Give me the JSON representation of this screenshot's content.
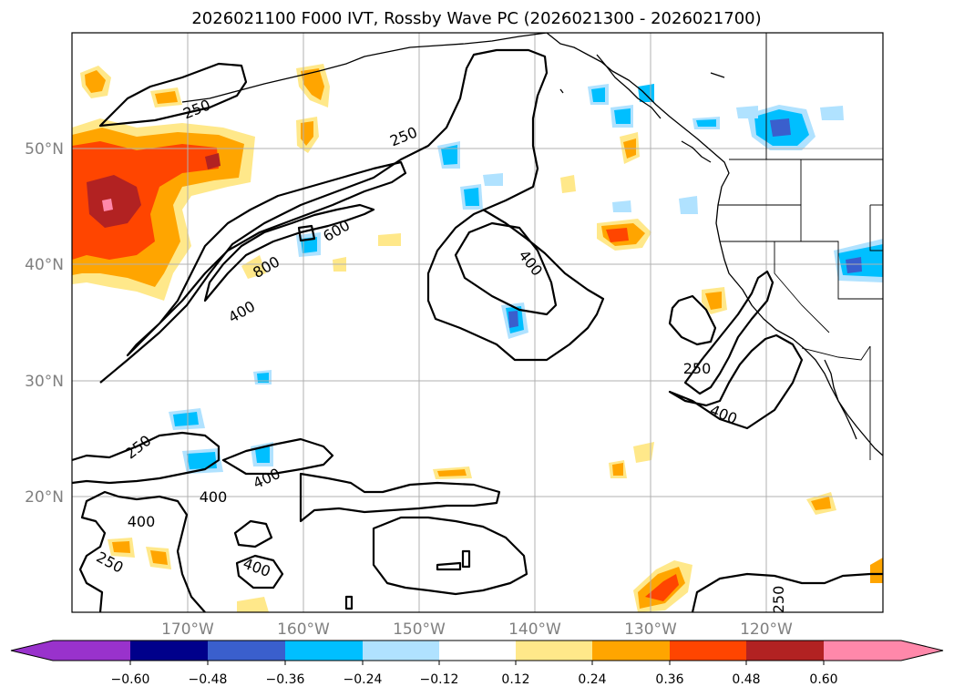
{
  "title": "2026021100 F000 IVT, Rossby Wave PC (2026021300 - 2026021700)",
  "lat_labels": [
    "50°N",
    "40°N",
    "30°N",
    "20°N"
  ],
  "lon_labels": [
    "170°W",
    "160°W",
    "150°W",
    "140°W",
    "130°W",
    "120°W"
  ],
  "contour_labels": [
    "250",
    "250",
    "600",
    "800",
    "400",
    "400",
    "250",
    "400",
    "250",
    "400",
    "400",
    "400",
    "250",
    "400",
    "250"
  ],
  "colorbar": {
    "ticks": [
      "−0.60",
      "−0.48",
      "−0.36",
      "−0.24",
      "−0.12",
      "0.12",
      "0.24",
      "0.36",
      "0.48",
      "0.60"
    ],
    "colors": [
      "#9932cc",
      "#00008b",
      "#3a5fcd",
      "#00bfff",
      "#b0e2ff",
      "#ffffff",
      "#ffe88a",
      "#ffa500",
      "#ff4500",
      "#b22222",
      "#ff88aa"
    ]
  },
  "colors": {
    "neg_strong": "#3a5fcd",
    "neg_mid": "#00bfff",
    "neg_light": "#b0e2ff",
    "pos_light": "#ffe88a",
    "pos_mid": "#ffa500",
    "pos_strong": "#ff4500",
    "pos_dark": "#b22222",
    "pos_max": "#ff88aa"
  }
}
